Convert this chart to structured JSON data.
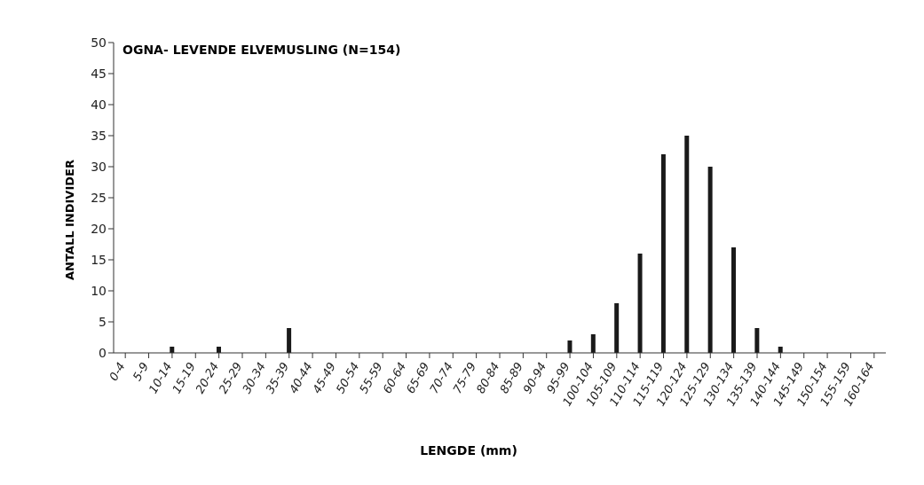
{
  "chart_data": {
    "type": "bar",
    "title": "OGNA- LEVENDE ELVEMUSLING (N=154)",
    "xlabel": "LENGDE (mm)",
    "ylabel": "ANTALL INDIVIDER",
    "categories": [
      "0-4",
      "5-9",
      "10-14",
      "15-19",
      "20-24",
      "25-29",
      "30-34",
      "35-39",
      "40-44",
      "45-49",
      "50-54",
      "55-59",
      "60-64",
      "65-69",
      "70-74",
      "75-79",
      "80-84",
      "85-89",
      "90-94",
      "95-99",
      "100-104",
      "105-109",
      "110-114",
      "115-119",
      "120-124",
      "125-129",
      "130-134",
      "135-139",
      "140-144",
      "145-149",
      "150-154",
      "155-159",
      "160-164"
    ],
    "values": [
      0,
      0,
      1,
      0,
      1,
      0,
      0,
      4,
      0,
      0,
      0,
      0,
      0,
      0,
      0,
      0,
      0,
      0,
      0,
      2,
      3,
      8,
      16,
      32,
      35,
      30,
      17,
      4,
      1,
      0,
      0,
      0,
      0
    ],
    "color": "#1a1a1a",
    "ylim": [
      0,
      50
    ],
    "yticks": [
      0,
      5,
      10,
      15,
      20,
      25,
      30,
      35,
      40,
      45,
      50
    ],
    "grid": false,
    "legend": false
  }
}
